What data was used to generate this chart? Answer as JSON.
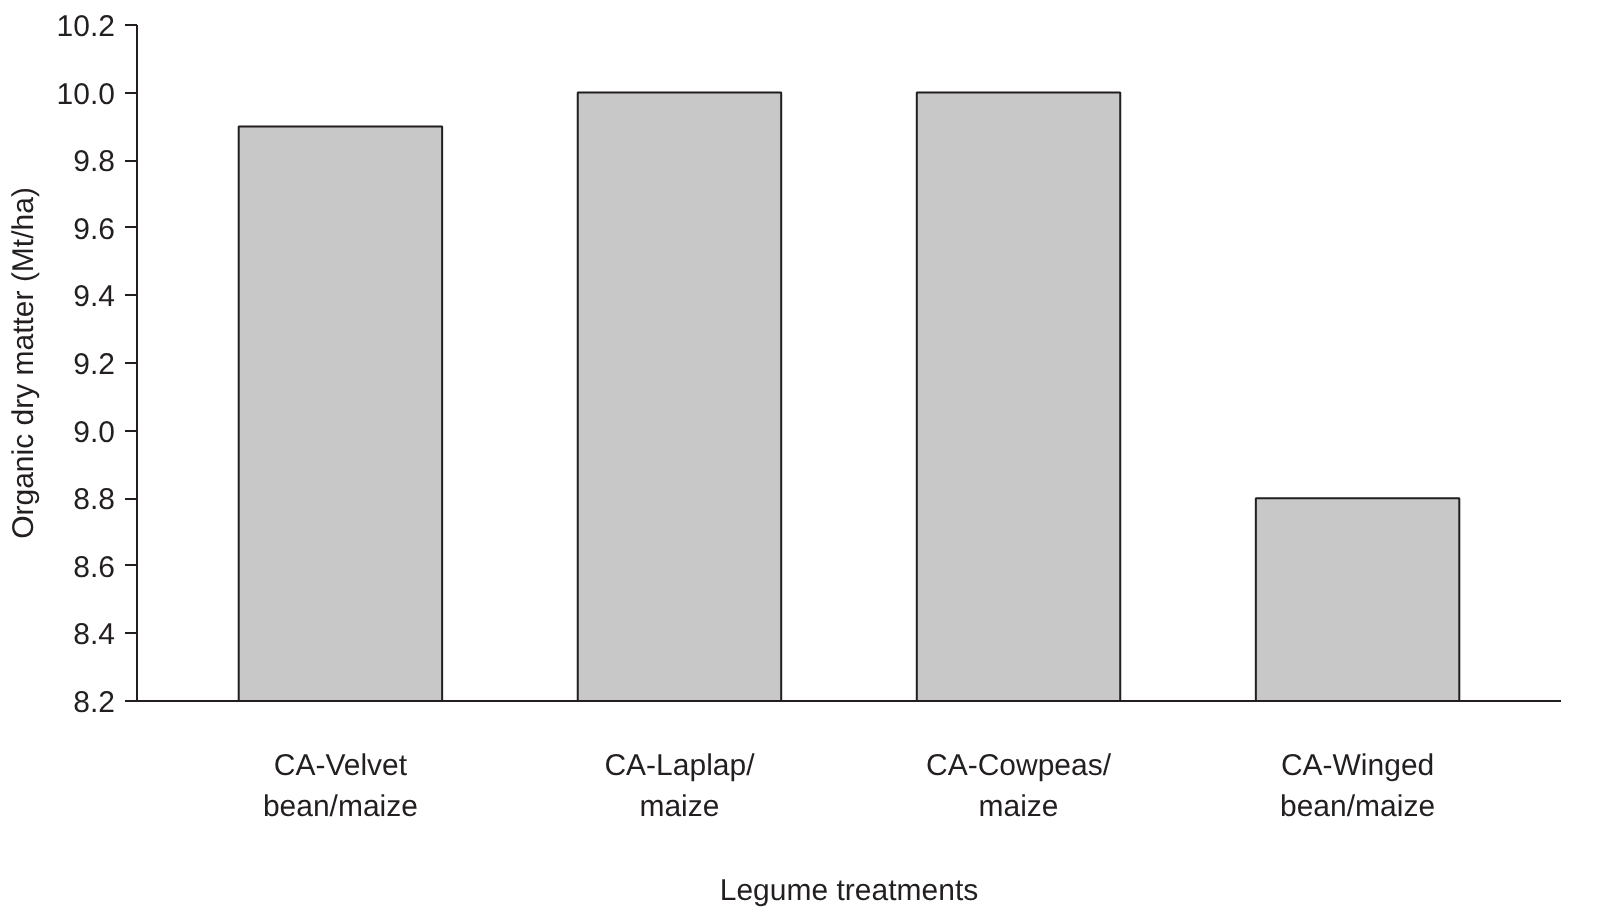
{
  "chart_data": {
    "type": "bar",
    "xlabel": "Legume treatments",
    "ylabel": "Organic dry matter (Mt/ha)",
    "categories": [
      "CA-Velvet\nbean/maize",
      "CA-Laplap/\nmaize",
      "CA-Cowpeas/\nmaize",
      "CA-Winged\nbean/maize"
    ],
    "values": [
      9.9,
      10.0,
      10.0,
      8.8
    ],
    "color": "#c8c8c8",
    "ylim": [
      8.2,
      10.2
    ],
    "yticks": [
      8.2,
      8.4,
      8.6,
      8.8,
      {
        "value": 9.0,
        "label": "9.0"
      },
      9.2,
      9.4,
      9.6,
      9.8,
      {
        "value": 10.0,
        "label": "10.0"
      },
      10.2
    ],
    "grid": false
  }
}
